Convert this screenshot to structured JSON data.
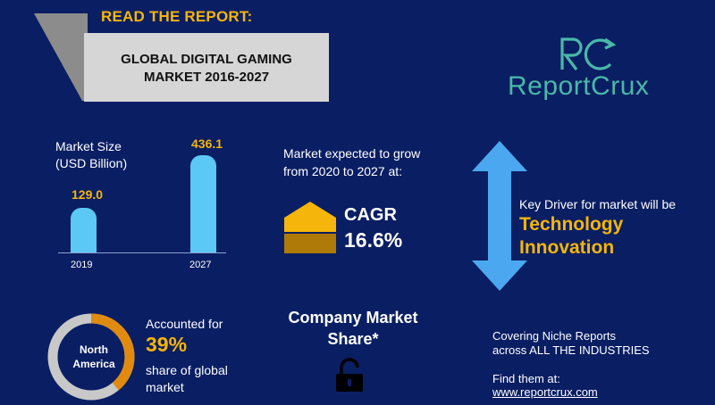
{
  "header": {
    "read_label": "READ THE REPORT:",
    "title_line1": "GLOBAL DIGITAL GAMING",
    "title_line2": "MARKET 2016-2027"
  },
  "brand": {
    "monogram": "RC",
    "name": "ReportCrux",
    "color": "#4ab8a8"
  },
  "market_size": {
    "label_line1": "Market Size",
    "label_line2": "(USD Billion)",
    "bars": [
      {
        "year": "2019",
        "value": "129.0"
      },
      {
        "year": "2027",
        "value": "436.1"
      }
    ]
  },
  "growth": {
    "text_line1": "Market expected to grow",
    "text_line2": "from 2020 to 2027 at:",
    "cagr_label": "CAGR",
    "cagr_value": "16.6%"
  },
  "driver": {
    "intro": "Key Driver for market will be",
    "line1": "Technology",
    "line2": "Innovation"
  },
  "region": {
    "name_line1": "North",
    "name_line2": "America",
    "accounted": "Accounted for",
    "percent": "39%",
    "share_line1": "share of global",
    "share_line2": "market",
    "share_fraction": 0.39
  },
  "company_share": {
    "line1": "Company Market",
    "line2": "Share*"
  },
  "footer": {
    "covering_line1": "Covering Niche Reports",
    "covering_line2": "across ALL THE INDUSTRIES",
    "find": "Find them at:",
    "url": "www.reportcrux.com"
  },
  "colors": {
    "background": "#0a1e63",
    "accent_gold": "#f5b50a",
    "bar_blue": "#5bc8f5",
    "arrow_blue": "#4ba8f0",
    "donut_track": "#c8c8c8",
    "donut_fill": "#e08b10"
  },
  "icons": [
    "up-down-arrow-icon",
    "cagr-house-icon",
    "lock-icon"
  ]
}
